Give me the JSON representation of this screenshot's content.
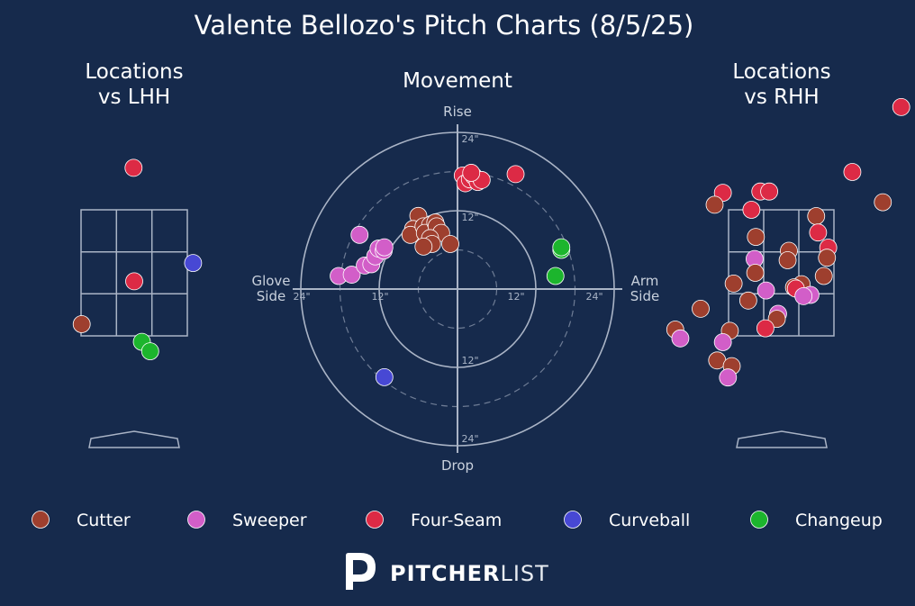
{
  "title": "Valente Bellozo's Pitch Charts (8/5/25)",
  "colors": {
    "background": "#162a4c",
    "grid": "#aab4c6",
    "Cutter": "#9e3f2e",
    "Sweeper": "#d25ec8",
    "Four-Seam": "#dc2a45",
    "Curveball": "#4748d4",
    "Changeup": "#1cb52d"
  },
  "brand": {
    "bold": "PITCHER",
    "light": "LIST"
  },
  "chart_data": [
    {
      "type": "scatter",
      "title_lines": [
        "Locations",
        "vs LHH"
      ],
      "strike_zone": {
        "rows": 3,
        "cols": 3
      },
      "points": [
        {
          "pitch": "Four-Seam",
          "x": -0.01,
          "y": 4.18
        },
        {
          "pitch": "Curveball",
          "x": 0.92,
          "y": 2.67
        },
        {
          "pitch": "Four-Seam",
          "x": 0.0,
          "y": 2.38
        },
        {
          "pitch": "Cutter",
          "x": -0.82,
          "y": 1.7
        },
        {
          "pitch": "Changeup",
          "x": 0.12,
          "y": 1.42
        },
        {
          "pitch": "Changeup",
          "x": 0.25,
          "y": 1.27
        }
      ]
    },
    {
      "type": "scatter",
      "title": "Movement",
      "axis_labels": {
        "top": "Rise",
        "bottom": "Drop",
        "left": "Glove\nSide",
        "right": "Arm\nSide"
      },
      "rings": [
        {
          "r": 6,
          "style": "dashed"
        },
        {
          "r": 12,
          "style": "solid",
          "label": "12\""
        },
        {
          "r": 18,
          "style": "dashed"
        },
        {
          "r": 24,
          "style": "solid",
          "label": "24\""
        }
      ],
      "points": [
        {
          "pitch": "Sweeper",
          "x": -18.2,
          "y": 2.0
        },
        {
          "pitch": "Sweeper",
          "x": -16.2,
          "y": 2.2
        },
        {
          "pitch": "Sweeper",
          "x": -14.2,
          "y": 3.6
        },
        {
          "pitch": "Sweeper",
          "x": -13.2,
          "y": 3.8
        },
        {
          "pitch": "Sweeper",
          "x": -12.6,
          "y": 5.0
        },
        {
          "pitch": "Sweeper",
          "x": -12.1,
          "y": 6.2
        },
        {
          "pitch": "Sweeper",
          "x": -11.3,
          "y": 5.9
        },
        {
          "pitch": "Sweeper",
          "x": -11.2,
          "y": 6.4
        },
        {
          "pitch": "Sweeper",
          "x": -15.0,
          "y": 8.3
        },
        {
          "pitch": "Cutter",
          "x": -6.0,
          "y": 11.2
        },
        {
          "pitch": "Cutter",
          "x": -6.8,
          "y": 9.2
        },
        {
          "pitch": "Cutter",
          "x": -7.2,
          "y": 8.3
        },
        {
          "pitch": "Cutter",
          "x": -5.2,
          "y": 9.6
        },
        {
          "pitch": "Cutter",
          "x": -4.2,
          "y": 9.8
        },
        {
          "pitch": "Cutter",
          "x": -5.0,
          "y": 8.6
        },
        {
          "pitch": "Cutter",
          "x": -3.4,
          "y": 10.2
        },
        {
          "pitch": "Cutter",
          "x": -3.2,
          "y": 9.6
        },
        {
          "pitch": "Cutter",
          "x": -2.5,
          "y": 8.6
        },
        {
          "pitch": "Cutter",
          "x": -4.2,
          "y": 7.8
        },
        {
          "pitch": "Cutter",
          "x": -3.9,
          "y": 6.9
        },
        {
          "pitch": "Cutter",
          "x": -5.2,
          "y": 6.5
        },
        {
          "pitch": "Cutter",
          "x": -1.1,
          "y": 6.9
        },
        {
          "pitch": "Four-Seam",
          "x": 0.8,
          "y": 17.4
        },
        {
          "pitch": "Four-Seam",
          "x": 1.2,
          "y": 16.2
        },
        {
          "pitch": "Four-Seam",
          "x": 1.9,
          "y": 16.8
        },
        {
          "pitch": "Four-Seam",
          "x": 2.5,
          "y": 17.3
        },
        {
          "pitch": "Four-Seam",
          "x": 3.1,
          "y": 16.4
        },
        {
          "pitch": "Four-Seam",
          "x": 3.7,
          "y": 16.7
        },
        {
          "pitch": "Four-Seam",
          "x": 2.1,
          "y": 17.8
        },
        {
          "pitch": "Four-Seam",
          "x": 8.9,
          "y": 17.6
        },
        {
          "pitch": "Changeup",
          "x": 15.9,
          "y": 6.0
        },
        {
          "pitch": "Changeup",
          "x": 15.9,
          "y": 6.4
        },
        {
          "pitch": "Changeup",
          "x": 15.0,
          "y": 2.0
        },
        {
          "pitch": "Curveball",
          "x": -11.2,
          "y": -13.5
        }
      ]
    },
    {
      "type": "scatter",
      "title_lines": [
        "Locations",
        "vs RHH"
      ],
      "strike_zone": {
        "rows": 3,
        "cols": 3
      },
      "points": [
        {
          "pitch": "Four-Seam",
          "x": 1.12,
          "y": 4.1
        },
        {
          "pitch": "Four-Seam",
          "x": -0.92,
          "y": 3.77
        },
        {
          "pitch": "Four-Seam",
          "x": -0.33,
          "y": 3.79
        },
        {
          "pitch": "Four-Seam",
          "x": -0.19,
          "y": 3.79
        },
        {
          "pitch": "Cutter",
          "x": -1.05,
          "y": 3.58
        },
        {
          "pitch": "Four-Seam",
          "x": -0.47,
          "y": 3.5
        },
        {
          "pitch": "Cutter",
          "x": 1.6,
          "y": 3.62
        },
        {
          "pitch": "Cutter",
          "x": 0.55,
          "y": 3.4
        },
        {
          "pitch": "Four-Seam",
          "x": 0.58,
          "y": 3.14
        },
        {
          "pitch": "Cutter",
          "x": -0.4,
          "y": 3.07
        },
        {
          "pitch": "Four-Seam",
          "x": 0.74,
          "y": 2.9
        },
        {
          "pitch": "Cutter",
          "x": 0.12,
          "y": 2.85
        },
        {
          "pitch": "Cutter",
          "x": 0.72,
          "y": 2.74
        },
        {
          "pitch": "Sweeper",
          "x": -0.42,
          "y": 2.72
        },
        {
          "pitch": "Cutter",
          "x": 0.1,
          "y": 2.7
        },
        {
          "pitch": "Cutter",
          "x": -0.41,
          "y": 2.5
        },
        {
          "pitch": "Cutter",
          "x": 0.67,
          "y": 2.45
        },
        {
          "pitch": "Cutter",
          "x": -0.75,
          "y": 2.33
        },
        {
          "pitch": "Cutter",
          "x": 0.32,
          "y": 2.32
        },
        {
          "pitch": "Cutter",
          "x": 0.2,
          "y": 2.27
        },
        {
          "pitch": "Four-Seam",
          "x": 0.23,
          "y": 2.25
        },
        {
          "pitch": "Sweeper",
          "x": -0.24,
          "y": 2.22
        },
        {
          "pitch": "Sweeper",
          "x": 0.46,
          "y": 2.15
        },
        {
          "pitch": "Sweeper",
          "x": 0.35,
          "y": 2.13
        },
        {
          "pitch": "Cutter",
          "x": -0.52,
          "y": 2.06
        },
        {
          "pitch": "Cutter",
          "x": -1.27,
          "y": 1.93
        },
        {
          "pitch": "Sweeper",
          "x": -0.05,
          "y": 1.85
        },
        {
          "pitch": "Cutter",
          "x": -0.07,
          "y": 1.77
        },
        {
          "pitch": "Four-Seam",
          "x": -0.25,
          "y": 1.62
        },
        {
          "pitch": "Cutter",
          "x": -0.81,
          "y": 1.58
        },
        {
          "pitch": "Cutter",
          "x": -1.67,
          "y": 1.6
        },
        {
          "pitch": "Sweeper",
          "x": -1.59,
          "y": 1.46
        },
        {
          "pitch": "Sweeper",
          "x": -0.92,
          "y": 1.4
        },
        {
          "pitch": "Cutter",
          "x": -1.01,
          "y": 1.11
        },
        {
          "pitch": "Cutter",
          "x": -0.78,
          "y": 1.02
        },
        {
          "pitch": "Sweeper",
          "x": -0.84,
          "y": 0.84
        },
        {
          "pitch": "Four-Seam",
          "x": 1.89,
          "y": 5.13
        },
        {
          "pitch": "Cutter",
          "x": 2.34,
          "y": 4.31
        }
      ]
    }
  ],
  "legend": {
    "items": [
      {
        "label": "Cutter",
        "pitch": "Cutter"
      },
      {
        "label": "Sweeper",
        "pitch": "Sweeper"
      },
      {
        "label": "Four-Seam",
        "pitch": "Four-Seam"
      },
      {
        "label": "Curveball",
        "pitch": "Curveball"
      },
      {
        "label": "Changeup",
        "pitch": "Changeup"
      }
    ]
  }
}
